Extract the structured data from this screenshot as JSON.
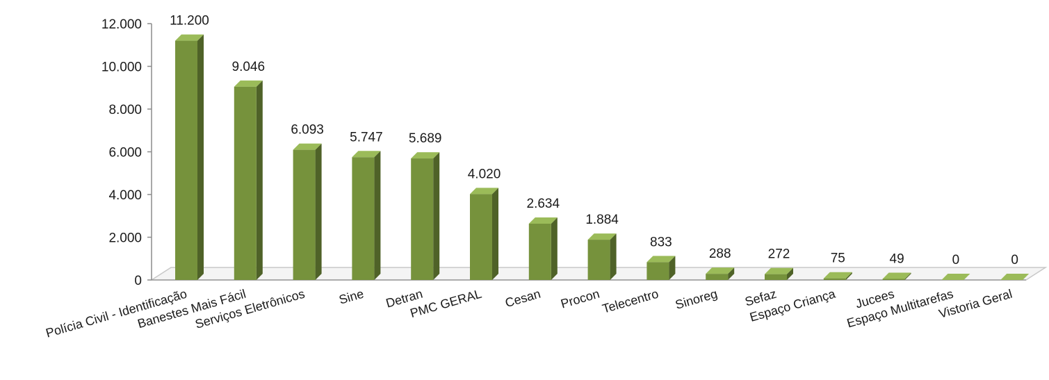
{
  "chart_data": {
    "type": "bar",
    "categories": [
      "Polícia Civil - Identificação",
      "Banestes Mais Fácil",
      "Serviços Eletrônicos",
      "Sine",
      "Detran",
      "PMC GERAL",
      "Cesan",
      "Procon",
      "Telecentro",
      "Sinoreg",
      "Sefaz",
      "Espaço Criança",
      "Jucees",
      "Espaço Multitarefas",
      "Vistoria Geral"
    ],
    "values": [
      11200,
      9046,
      6093,
      5747,
      5689,
      4020,
      2634,
      1884,
      833,
      288,
      272,
      75,
      49,
      0,
      0
    ],
    "data_labels": [
      "11.200",
      "9.046",
      "6.093",
      "5.747",
      "5.689",
      "4.020",
      "2.634",
      "1.884",
      "833",
      "288",
      "272",
      "75",
      "49",
      "0",
      "0"
    ],
    "y_ticks": [
      0,
      2000,
      4000,
      6000,
      8000,
      10000,
      12000
    ],
    "y_tick_labels": [
      "0",
      "2.000",
      "4.000",
      "6.000",
      "8.000",
      "10.000",
      "12.000"
    ],
    "ylim": [
      0,
      12000
    ],
    "grid": false,
    "legend": "none",
    "bar_style": "3d-column",
    "colors": {
      "bar_front": "#76923C",
      "bar_side": "#4F6228",
      "bar_top": "#9BBB59",
      "floor": "#C8C8C8",
      "floor_edge": "#9A9A9A"
    }
  }
}
